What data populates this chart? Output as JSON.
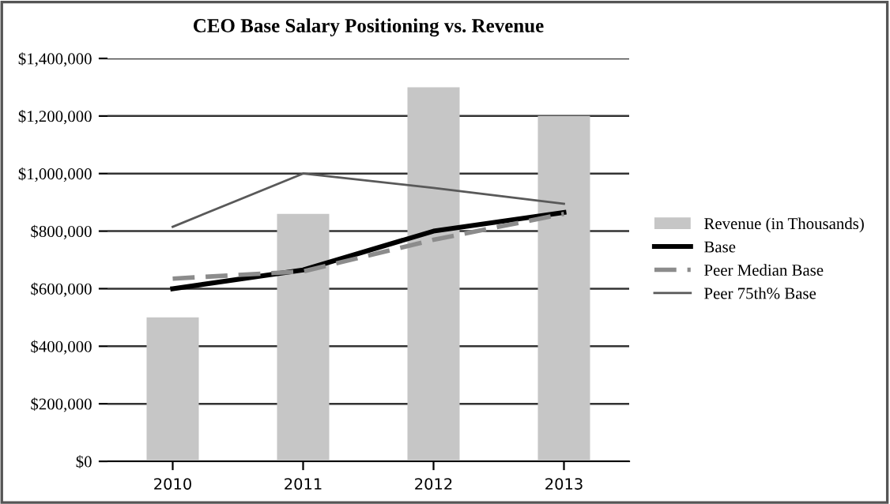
{
  "chart_data": {
    "type": "bar",
    "title": "CEO Base Salary Positioning vs. Revenue",
    "categories": [
      "2010",
      "2011",
      "2012",
      "2013"
    ],
    "series": [
      {
        "name": "Revenue (in Thousands)",
        "color": "#c6c6c6",
        "values": [
          500000,
          860000,
          1300000,
          1200000
        ]
      },
      {
        "name": "Base",
        "type": "line",
        "color": "#000000",
        "line_style": "solid",
        "values": [
          600000,
          665000,
          800000,
          865000
        ]
      },
      {
        "name": "Peer Median Base",
        "type": "line",
        "color": "#8c8c8c",
        "line_style": "dashed",
        "values": [
          635000,
          660000,
          770000,
          860000
        ]
      },
      {
        "name": "Peer 75th% Base",
        "type": "line",
        "color": "#595959",
        "line_style": "solid",
        "values": [
          815000,
          1000000,
          950000,
          895000
        ]
      }
    ],
    "ylim": [
      0,
      1400000
    ],
    "yticks": [
      {
        "value": 0,
        "label": "$0"
      },
      {
        "value": 200000,
        "label": "$200,000"
      },
      {
        "value": 400000,
        "label": "$400,000"
      },
      {
        "value": 600000,
        "label": "$600,000"
      },
      {
        "value": 800000,
        "label": "$800,000"
      },
      {
        "value": 1000000,
        "label": "$1,000,000"
      },
      {
        "value": 1200000,
        "label": "$1,200,000"
      },
      {
        "value": 1400000,
        "label": "$1,400,000"
      }
    ],
    "grid": "y",
    "legend": "right"
  }
}
